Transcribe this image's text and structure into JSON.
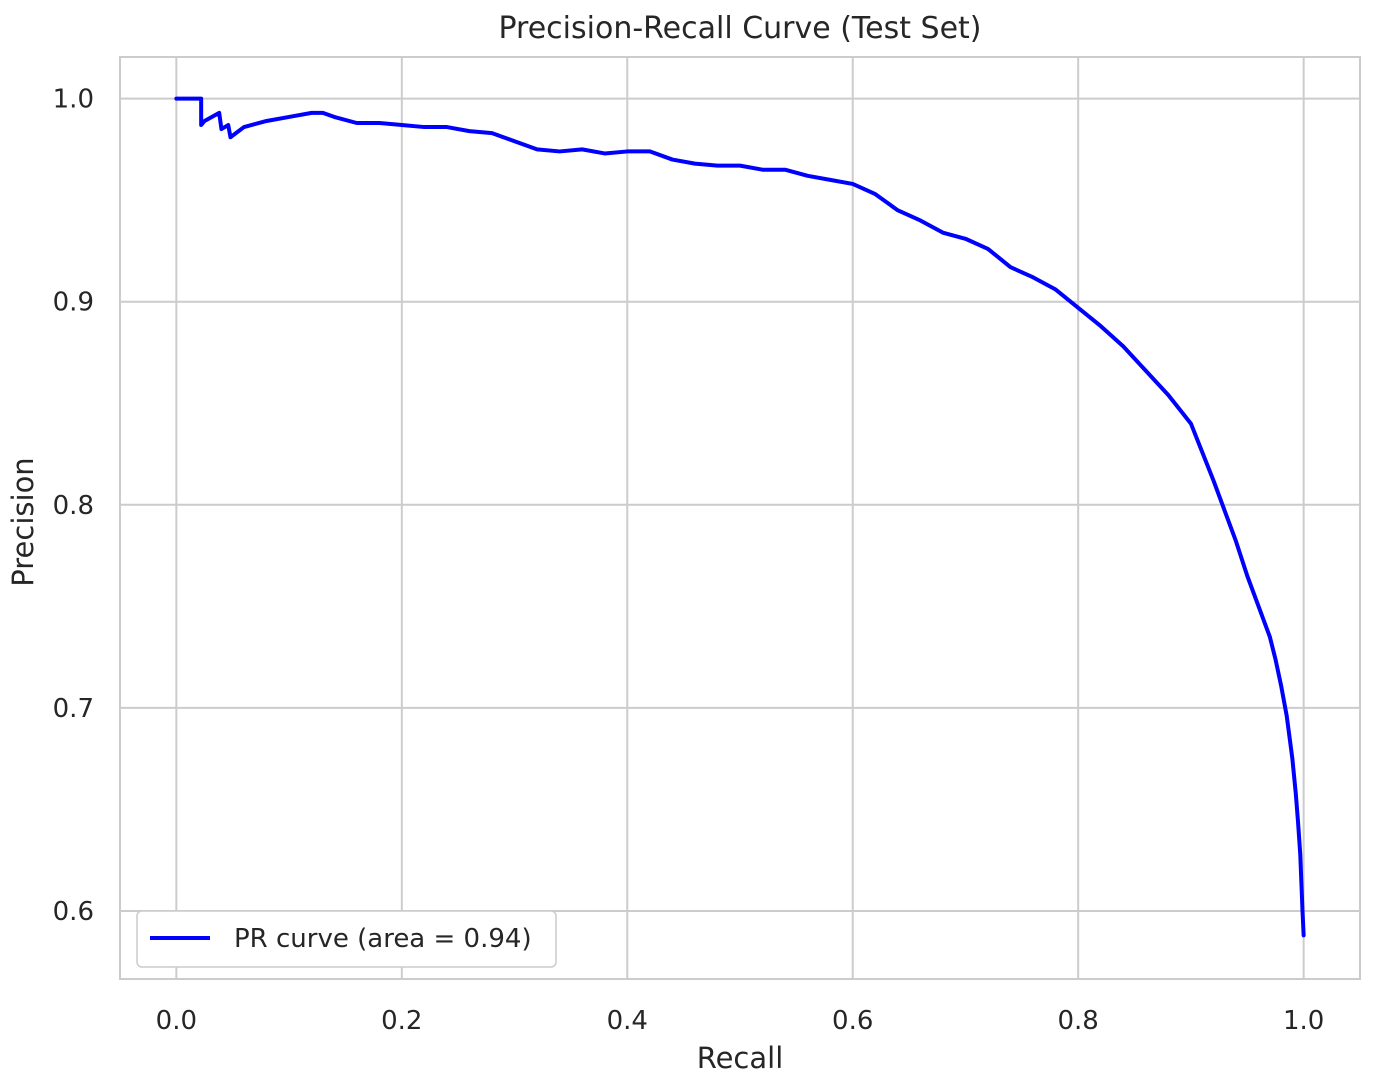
{
  "chart_data": {
    "type": "line",
    "title": "Precision-Recall Curve (Test Set)",
    "xlabel": "Recall",
    "ylabel": "Precision",
    "xlim": [
      -0.05,
      1.05
    ],
    "ylim": [
      0.5665,
      1.0205
    ],
    "grid": true,
    "legend_position": "lower-left",
    "x_ticks": [
      "0.0",
      "0.2",
      "0.4",
      "0.6",
      "0.8",
      "1.0"
    ],
    "y_ticks": [
      "0.6",
      "0.7",
      "0.8",
      "0.9",
      "1.0"
    ],
    "series": [
      {
        "name": "PR curve (area = 0.94)",
        "color": "#0000ff",
        "x": [
          0.0,
          0.022,
          0.022,
          0.025,
          0.038,
          0.04,
          0.046,
          0.048,
          0.06,
          0.08,
          0.1,
          0.12,
          0.13,
          0.14,
          0.16,
          0.18,
          0.2,
          0.22,
          0.24,
          0.26,
          0.28,
          0.3,
          0.32,
          0.34,
          0.36,
          0.38,
          0.4,
          0.42,
          0.44,
          0.46,
          0.48,
          0.5,
          0.52,
          0.54,
          0.56,
          0.58,
          0.6,
          0.62,
          0.64,
          0.66,
          0.68,
          0.7,
          0.72,
          0.74,
          0.76,
          0.78,
          0.8,
          0.82,
          0.84,
          0.86,
          0.88,
          0.9,
          0.91,
          0.92,
          0.93,
          0.94,
          0.95,
          0.96,
          0.97,
          0.975,
          0.98,
          0.985,
          0.99,
          0.993,
          0.995,
          0.997,
          0.998,
          0.999,
          1.0
        ],
        "y": [
          1.0,
          1.0,
          0.987,
          0.989,
          0.993,
          0.985,
          0.987,
          0.981,
          0.986,
          0.989,
          0.991,
          0.993,
          0.993,
          0.991,
          0.988,
          0.988,
          0.987,
          0.986,
          0.986,
          0.984,
          0.983,
          0.979,
          0.975,
          0.974,
          0.975,
          0.973,
          0.974,
          0.974,
          0.97,
          0.968,
          0.967,
          0.967,
          0.965,
          0.965,
          0.962,
          0.96,
          0.958,
          0.953,
          0.945,
          0.94,
          0.934,
          0.931,
          0.926,
          0.917,
          0.912,
          0.906,
          0.897,
          0.888,
          0.878,
          0.866,
          0.854,
          0.84,
          0.826,
          0.812,
          0.797,
          0.782,
          0.765,
          0.75,
          0.735,
          0.724,
          0.711,
          0.696,
          0.675,
          0.658,
          0.644,
          0.628,
          0.614,
          0.6,
          0.588
        ]
      }
    ]
  }
}
